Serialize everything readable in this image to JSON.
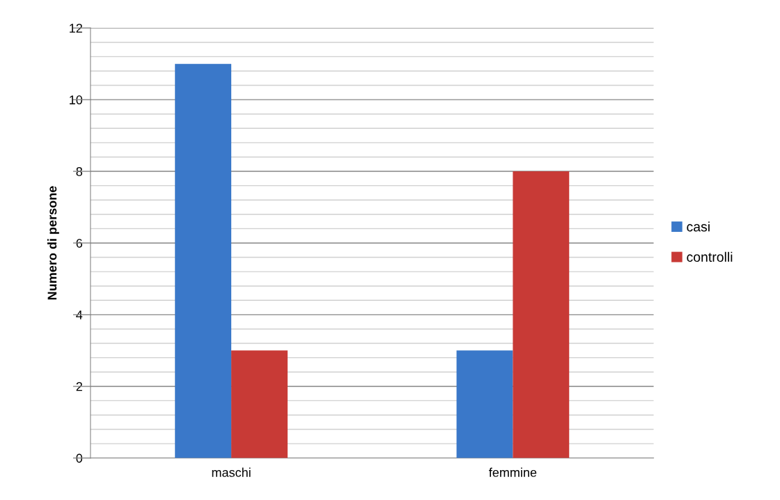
{
  "chart_data": {
    "type": "bar",
    "ylabel": "Numero di persone",
    "categories": [
      "maschi",
      "femmine"
    ],
    "series": [
      {
        "name": "casi",
        "color": "#3a78c9",
        "values": [
          11,
          3
        ]
      },
      {
        "name": "controlli",
        "color": "#c83a36",
        "values": [
          3,
          8
        ]
      }
    ],
    "ylim": [
      0,
      12
    ],
    "yticks": [
      0,
      {
        "value": 0.4,
        "label": null
      },
      {
        "value": 0.8,
        "label": null
      },
      {
        "value": 1.2,
        "label": null
      },
      {
        "value": 1.6,
        "label": null
      },
      2,
      {
        "value": 2.4,
        "label": null
      },
      {
        "value": 2.8,
        "label": null
      },
      {
        "value": 3.2,
        "label": null
      },
      {
        "value": 3.6,
        "label": null
      },
      4,
      {
        "value": 4.4,
        "label": null
      },
      {
        "value": 4.8,
        "label": null
      },
      {
        "value": 5.2,
        "label": null
      },
      {
        "value": 5.6,
        "label": null
      },
      6,
      {
        "value": 6.4,
        "label": null
      },
      {
        "value": 6.8,
        "label": null
      },
      {
        "value": 7.2,
        "label": null
      },
      {
        "value": 7.6,
        "label": null
      },
      8,
      {
        "value": 8.4,
        "label": null
      },
      {
        "value": 8.8,
        "label": null
      },
      {
        "value": 9.2,
        "label": null
      },
      {
        "value": 9.6,
        "label": null
      },
      10,
      {
        "value": 10.4,
        "label": null
      },
      {
        "value": 10.8,
        "label": null
      },
      {
        "value": 11.2,
        "label": null
      },
      {
        "value": 11.6,
        "label": null
      },
      12
    ],
    "grid": "y",
    "legend": "right"
  }
}
